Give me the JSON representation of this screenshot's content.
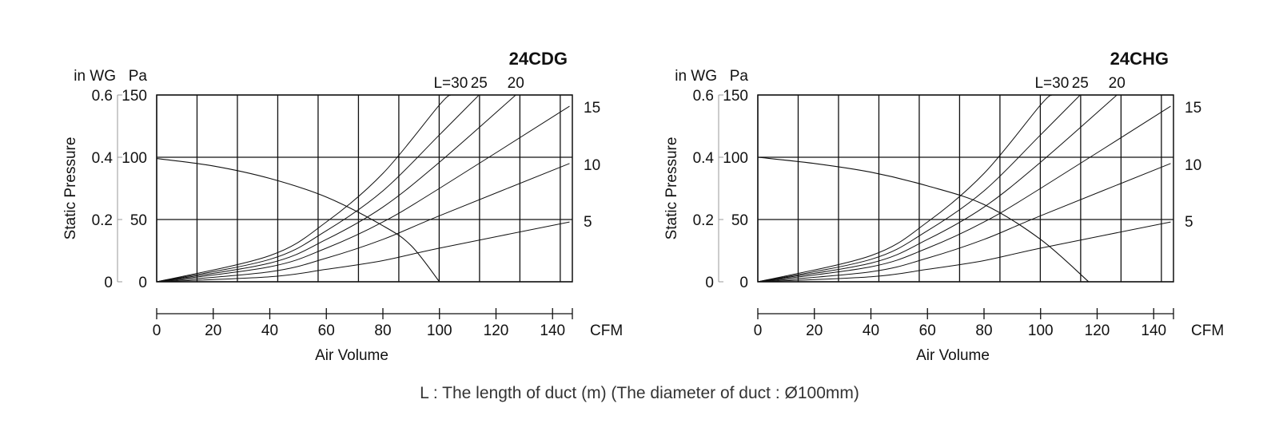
{
  "chart_data": [
    {
      "type": "line",
      "title": "24CDG",
      "xlabel": "Air Volume",
      "x_unit": "CFM",
      "xlim": [
        0,
        147
      ],
      "x_ticks": [
        0,
        20,
        40,
        60,
        80,
        100,
        120,
        140
      ],
      "ylabel": "Static Pressure",
      "y_units": [
        "in WG",
        "Pa"
      ],
      "ylim_pa": [
        0,
        150
      ],
      "ylim_inwg": [
        0,
        0.6
      ],
      "y_ticks_pa": [
        0,
        50,
        100,
        150
      ],
      "y_ticks_inwg": [
        "0",
        "0.2",
        "0.4",
        "0.6"
      ],
      "right_scale_ticks": [
        5,
        10,
        15
      ],
      "grid": true,
      "series": [
        {
          "label": "",
          "values": [
            [
              0,
              99
            ],
            [
              20,
              93
            ],
            [
              40,
              83
            ],
            [
              60,
              68
            ],
            [
              80,
              45
            ],
            [
              90,
              29
            ],
            [
              100,
              0
            ]
          ]
        }
      ],
      "duct_curves": [
        {
          "label": "L=30",
          "points": [
            [
              0,
              0
            ],
            [
              40,
              21
            ],
            [
              60,
              48
            ],
            [
              80,
              87
            ],
            [
              100,
              142
            ],
            [
              104,
              150
            ]
          ]
        },
        {
          "label": "25",
          "points": [
            [
              0,
              0
            ],
            [
              40,
              18
            ],
            [
              60,
              41
            ],
            [
              80,
              73
            ],
            [
              100,
              118
            ],
            [
              114,
              150
            ]
          ]
        },
        {
          "label": "20",
          "points": [
            [
              0,
              0
            ],
            [
              40,
              15
            ],
            [
              60,
              34
            ],
            [
              80,
              60
            ],
            [
              100,
              96
            ],
            [
              127,
              150
            ]
          ]
        },
        {
          "label": "15",
          "points": [
            [
              0,
              0
            ],
            [
              40,
              12
            ],
            [
              60,
              27
            ],
            [
              80,
              48
            ],
            [
              100,
              75
            ],
            [
              146,
              141
            ]
          ]
        },
        {
          "label": "10",
          "points": [
            [
              0,
              0
            ],
            [
              40,
              8
            ],
            [
              60,
              19
            ],
            [
              80,
              34
            ],
            [
              100,
              53
            ],
            [
              146,
              95
            ]
          ]
        },
        {
          "label": "5",
          "points": [
            [
              0,
              0
            ],
            [
              40,
              4
            ],
            [
              60,
              10
            ],
            [
              80,
              17
            ],
            [
              100,
              27
            ],
            [
              146,
              48
            ]
          ]
        }
      ]
    },
    {
      "type": "line",
      "title": "24CHG",
      "xlabel": "Air Volume",
      "x_unit": "CFM",
      "xlim": [
        0,
        147
      ],
      "x_ticks": [
        0,
        20,
        40,
        60,
        80,
        100,
        120,
        140
      ],
      "ylabel": "Static Pressure",
      "y_units": [
        "in WG",
        "Pa"
      ],
      "ylim_pa": [
        0,
        150
      ],
      "ylim_inwg": [
        0,
        0.6
      ],
      "y_ticks_pa": [
        0,
        50,
        100,
        150
      ],
      "y_ticks_inwg": [
        "0",
        "0.2",
        "0.4",
        "0.6"
      ],
      "right_scale_ticks": [
        5,
        10,
        15
      ],
      "grid": true,
      "series": [
        {
          "label": "",
          "values": [
            [
              0,
              100
            ],
            [
              20,
              95
            ],
            [
              40,
              88
            ],
            [
              60,
              77
            ],
            [
              80,
              62
            ],
            [
              100,
              34
            ],
            [
              117,
              0
            ]
          ]
        }
      ],
      "duct_curves": [
        {
          "label": "L=30",
          "points": [
            [
              0,
              0
            ],
            [
              40,
              21
            ],
            [
              60,
              48
            ],
            [
              80,
              87
            ],
            [
              100,
              142
            ],
            [
              104,
              150
            ]
          ]
        },
        {
          "label": "25",
          "points": [
            [
              0,
              0
            ],
            [
              40,
              18
            ],
            [
              60,
              41
            ],
            [
              80,
              73
            ],
            [
              100,
              118
            ],
            [
              114,
              150
            ]
          ]
        },
        {
          "label": "20",
          "points": [
            [
              0,
              0
            ],
            [
              40,
              15
            ],
            [
              60,
              34
            ],
            [
              80,
              60
            ],
            [
              100,
              96
            ],
            [
              127,
              150
            ]
          ]
        },
        {
          "label": "15",
          "points": [
            [
              0,
              0
            ],
            [
              40,
              12
            ],
            [
              60,
              27
            ],
            [
              80,
              48
            ],
            [
              100,
              75
            ],
            [
              146,
              141
            ]
          ]
        },
        {
          "label": "10",
          "points": [
            [
              0,
              0
            ],
            [
              40,
              8
            ],
            [
              60,
              19
            ],
            [
              80,
              34
            ],
            [
              100,
              53
            ],
            [
              146,
              95
            ]
          ]
        },
        {
          "label": "5",
          "points": [
            [
              0,
              0
            ],
            [
              40,
              4
            ],
            [
              60,
              10
            ],
            [
              80,
              17
            ],
            [
              100,
              27
            ],
            [
              146,
              48
            ]
          ]
        }
      ]
    }
  ],
  "footnote": "L : The length of duct (m) (The diameter of duct : Ø100mm)"
}
